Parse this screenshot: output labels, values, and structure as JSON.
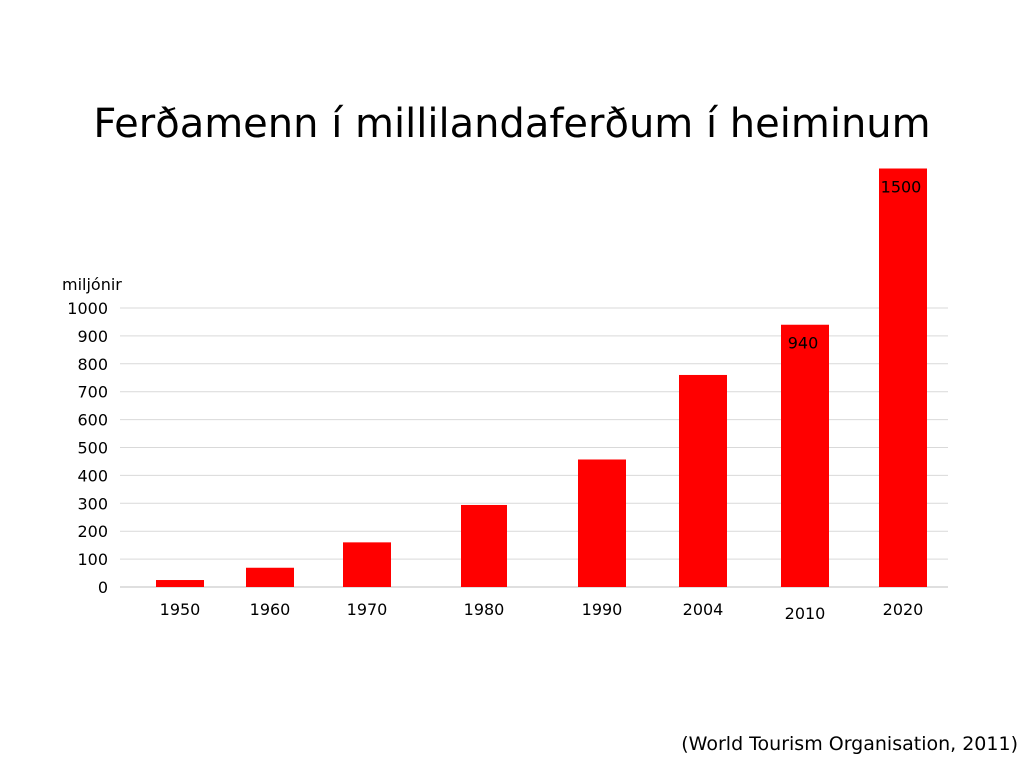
{
  "slide": {
    "title": "Ferðamenn í millilandaferðum í heiminum",
    "source": "(World Tourism Organisation, 2011)"
  },
  "colors": {
    "bar": "#ff0000",
    "grid": "#d9d9d9",
    "text": "#000000"
  },
  "chart_data": {
    "type": "bar",
    "title": "",
    "xlabel": "",
    "ylabel": "miljónir",
    "categories": [
      "1950",
      "1960",
      "1970",
      "1980",
      "1990",
      "2004",
      "2010",
      "2020"
    ],
    "values": [
      25,
      69,
      160,
      294,
      457,
      760,
      940,
      1500
    ],
    "data_labels": [
      "",
      "",
      "",
      "",
      "",
      "",
      "940",
      "1500"
    ],
    "ylim": [
      0,
      1000
    ],
    "yticks": [
      0,
      100,
      200,
      300,
      400,
      500,
      600,
      700,
      800,
      900,
      1000
    ],
    "grid": true,
    "legend": "none"
  }
}
